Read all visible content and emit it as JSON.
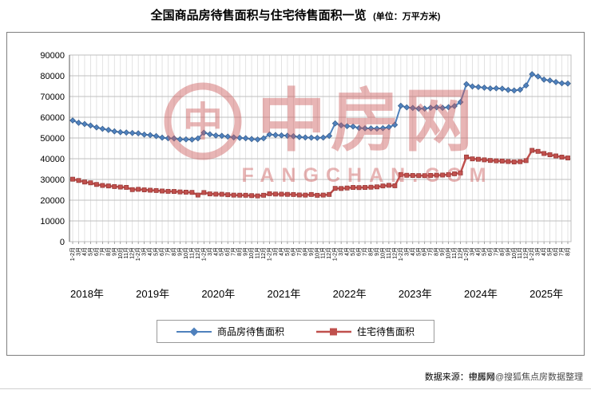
{
  "title": {
    "main": "全国商品房待售面积与住宅待售面积一览",
    "unit": "(单位：万平方米)"
  },
  "watermark": {
    "name": "中房网",
    "domain": "FANGCHAN.COM",
    "logo_glyph": "中",
    "color": "#cd5c5c"
  },
  "source": {
    "prefix": "数据来源：中房网",
    "overlay": "搜狐号@搜狐焦点房数据整理"
  },
  "legend": [
    {
      "label": "商品房待售面积",
      "color": "#4f81bd",
      "marker": "diamond"
    },
    {
      "label": "住宅待售面积",
      "color": "#c0504d",
      "marker": "square"
    }
  ],
  "chart_data": {
    "type": "line",
    "title": "全国商品房待售面积与住宅待售面积一览",
    "unit": "万平方米",
    "xlabel": "",
    "ylabel": "",
    "ylim": [
      0,
      90000
    ],
    "ytick_step": 10000,
    "grid": true,
    "legend_position": "bottom",
    "x_years": [
      {
        "label": "2018年",
        "months": [
          "1-2月",
          "3月",
          "4月",
          "5月",
          "6月",
          "7月",
          "8月",
          "9月",
          "10月",
          "11月",
          "12月"
        ]
      },
      {
        "label": "2019年",
        "months": [
          "1-2月",
          "3月",
          "4月",
          "5月",
          "6月",
          "7月",
          "8月",
          "9月",
          "10月",
          "11月",
          "12月"
        ]
      },
      {
        "label": "2020年",
        "months": [
          "1-2月",
          "3月",
          "4月",
          "5月",
          "6月",
          "7月",
          "8月",
          "9月",
          "10月",
          "11月",
          "12月"
        ]
      },
      {
        "label": "2021年",
        "months": [
          "1-2月",
          "3月",
          "4月",
          "5月",
          "6月",
          "7月",
          "8月",
          "9月",
          "10月",
          "11月",
          "12月"
        ]
      },
      {
        "label": "2022年",
        "months": [
          "1-2月",
          "3月",
          "4月",
          "5月",
          "6月",
          "7月",
          "8月",
          "9月",
          "10月",
          "11月",
          "12月"
        ]
      },
      {
        "label": "2023年",
        "months": [
          "1-2月",
          "3月",
          "4月",
          "5月",
          "6月",
          "7月",
          "8月",
          "9月",
          "10月",
          "11月",
          "12月"
        ]
      },
      {
        "label": "2024年",
        "months": [
          "1-2月",
          "3月",
          "4月",
          "5月",
          "6月",
          "7月",
          "8月",
          "9月",
          "10月",
          "11月",
          "12月"
        ]
      },
      {
        "label": "2025年",
        "months": [
          "1-2月",
          "3月",
          "4月",
          "5月",
          "6月",
          "7月",
          "8月"
        ]
      }
    ],
    "series": [
      {
        "name": "商品房待售面积",
        "color": "#4f81bd",
        "edge": "#385d8a",
        "marker": "diamond",
        "width": 2,
        "values": [
          58470,
          57329,
          56726,
          56010,
          55083,
          54428,
          53873,
          53191,
          52789,
          52627,
          52414,
          52251,
          51646,
          51380,
          50928,
          50162,
          49876,
          49784,
          49346,
          49323,
          49221,
          49821,
          52563,
          51779,
          51184,
          51038,
          50662,
          50276,
          50052,
          49874,
          49492,
          49287,
          49850,
          51734,
          51416,
          51254,
          51087,
          50846,
          50464,
          50243,
          50143,
          50059,
          50182,
          51023,
          57026,
          56114,
          55735,
          55533,
          54784,
          54655,
          54605,
          54534,
          54697,
          55203,
          56366,
          65528,
          64770,
          64487,
          64120,
          64159,
          64564,
          64795,
          64537,
          64835,
          65385,
          67295,
          75969,
          74833,
          74553,
          74256,
          73894,
          73926,
          73811,
          73177,
          72909,
          73286,
          75327,
          80764,
          79655,
          78147,
          77753,
          76948,
          76386,
          76238
        ]
      },
      {
        "name": "住宅待售面积",
        "color": "#c0504d",
        "edge": "#943634",
        "marker": "square",
        "width": 2.5,
        "values": [
          30129,
          29502,
          28761,
          28366,
          27590,
          27107,
          26869,
          26575,
          26330,
          26177,
          25091,
          25246,
          24986,
          24814,
          24666,
          24420,
          24268,
          24203,
          23982,
          23867,
          23762,
          22473,
          23690,
          23030,
          22916,
          22864,
          22634,
          22447,
          22414,
          22382,
          22204,
          22065,
          22379,
          23111,
          22951,
          22898,
          22806,
          22741,
          22517,
          22456,
          22748,
          22358,
          22463,
          22761,
          25699,
          25640,
          25879,
          26144,
          26069,
          26139,
          26261,
          26422,
          26868,
          27173,
          26947,
          32371,
          32021,
          31921,
          31862,
          31839,
          31943,
          32078,
          32123,
          32337,
          32731,
          33119,
          40835,
          39930,
          39742,
          39455,
          39166,
          38975,
          38864,
          38651,
          38420,
          38576,
          39088,
          44033,
          43547,
          42519,
          41917,
          41341,
          40777,
          40361
        ]
      }
    ]
  }
}
